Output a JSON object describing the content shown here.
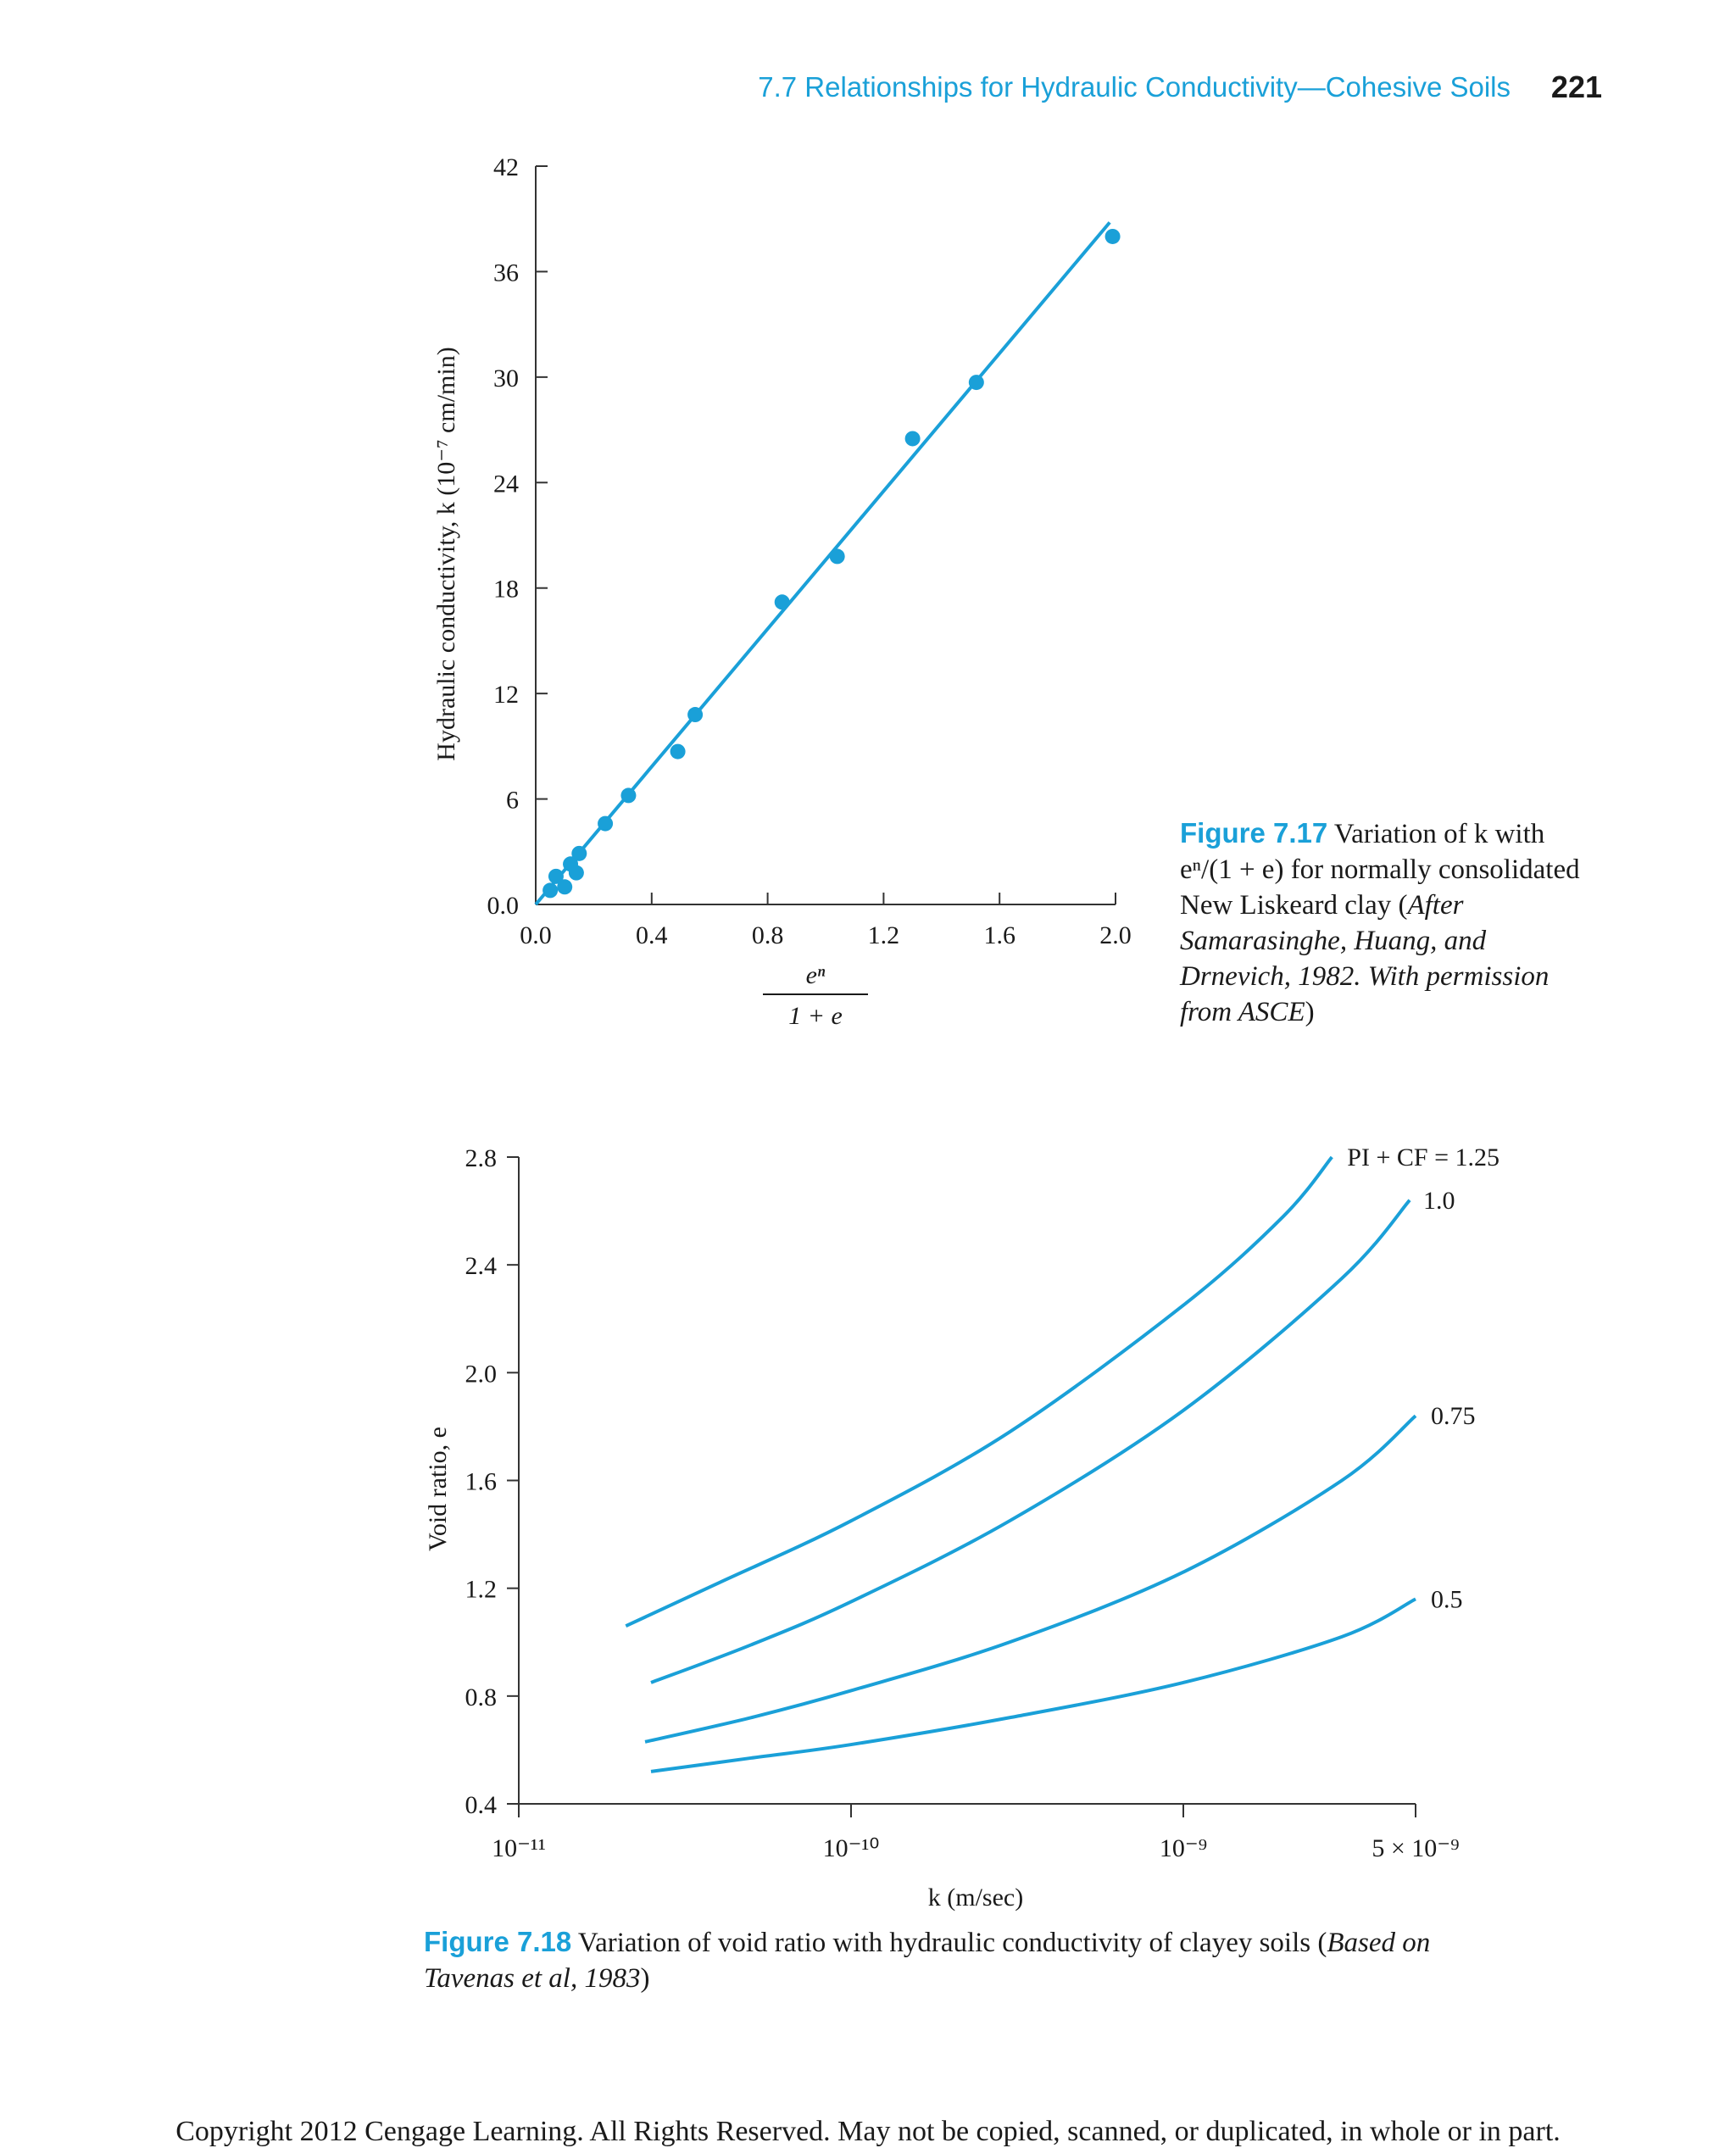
{
  "header": {
    "running_head": "7.7 Relationships for Hydraulic Conductivity—Cohesive Soils",
    "page_number": "221"
  },
  "colors": {
    "accent": "#1aa0d8",
    "axis": "#333333",
    "text": "#1a1a1a"
  },
  "chart_data": [
    {
      "type": "scatter",
      "ylabel": "Hydraulic conductivity, k (10⁻⁷ cm/min)",
      "xlabel_numerator": "eⁿ",
      "xlabel_denominator": "1 + e",
      "xlim": [
        0.0,
        2.0
      ],
      "ylim": [
        0.0,
        42
      ],
      "x_ticks": [
        0.0,
        0.4,
        0.8,
        1.2,
        1.6,
        2.0
      ],
      "x_tick_labels": [
        "0.0",
        "0.4",
        "0.8",
        "1.2",
        "1.6",
        "2.0"
      ],
      "y_ticks": [
        0,
        6,
        12,
        18,
        24,
        30,
        36,
        42
      ],
      "y_tick_labels": [
        "0.0",
        "6",
        "12",
        "18",
        "24",
        "30",
        "36",
        "42"
      ],
      "points": {
        "x": [
          0.05,
          0.07,
          0.1,
          0.12,
          0.14,
          0.15,
          0.24,
          0.32,
          0.49,
          0.55,
          0.85,
          1.04,
          1.3,
          1.52,
          1.99
        ],
        "y": [
          0.8,
          1.6,
          1.0,
          2.3,
          1.8,
          2.9,
          4.6,
          6.2,
          8.7,
          10.8,
          17.2,
          19.8,
          26.5,
          29.7,
          38.0
        ]
      },
      "fit_line": {
        "x": [
          0.0,
          1.98
        ],
        "y": [
          0.0,
          38.8
        ]
      },
      "caption": {
        "label": "Figure 7.17",
        "line1": "Variation of k with",
        "line2": "eⁿ/(1 + e) for normally consolidated",
        "line3": "New Liskeard clay (",
        "line3_italic": "After",
        "line4_italic": "Samarasinghe, Huang, and",
        "line5_italic": "Drnevich, 1982. With permission",
        "line6_italic": "from ASCE",
        "line6_end": ")"
      }
    },
    {
      "type": "line",
      "xscale": "log",
      "xlabel": "k (m/sec)",
      "ylabel": "Void ratio, e",
      "xlim": [
        1e-11,
        5e-09
      ],
      "ylim": [
        0.4,
        2.8
      ],
      "x_ticks": [
        1e-11,
        1e-10,
        1e-09,
        5e-09
      ],
      "x_tick_labels": [
        "10⁻¹¹",
        "10⁻¹⁰",
        "10⁻⁹",
        "5 × 10⁻⁹"
      ],
      "y_ticks": [
        0.4,
        0.8,
        1.2,
        1.6,
        2.0,
        2.4,
        2.8
      ],
      "y_tick_labels": [
        "0.4",
        "0.8",
        "1.2",
        "1.6",
        "2.0",
        "2.4",
        "2.8"
      ],
      "series": [
        {
          "name": "PI + CF = 1.25",
          "x": [
            2.1e-11,
            4e-11,
            1e-10,
            3e-10,
            1e-09,
            2e-09,
            2.8e-09
          ],
          "y": [
            1.06,
            1.22,
            1.45,
            1.78,
            2.25,
            2.58,
            2.8
          ]
        },
        {
          "name": "1.0",
          "x": [
            2.5e-11,
            5e-11,
            1e-10,
            3e-10,
            1e-09,
            3e-09,
            4.8e-09
          ],
          "y": [
            0.85,
            0.99,
            1.15,
            1.45,
            1.86,
            2.35,
            2.64
          ]
        },
        {
          "name": "0.75",
          "x": [
            2.4e-11,
            5e-11,
            1e-10,
            3e-10,
            1e-09,
            3e-09,
            5e-09
          ],
          "y": [
            0.63,
            0.72,
            0.82,
            1.0,
            1.26,
            1.6,
            1.84
          ]
        },
        {
          "name": "0.5",
          "x": [
            2.5e-11,
            5e-11,
            1e-10,
            3e-10,
            1e-09,
            3e-09,
            5e-09
          ],
          "y": [
            0.52,
            0.57,
            0.62,
            0.72,
            0.85,
            1.02,
            1.16
          ]
        }
      ],
      "caption": {
        "label": "Figure 7.18",
        "text": "Variation of void ratio with hydraulic conductivity of clayey soils (",
        "italic": "Based on Tavenas et al, 1983",
        "end": ")"
      }
    }
  ],
  "footer": {
    "copyright": "Copyright 2012 Cengage Learning. All Rights Reserved. May not be copied, scanned, or duplicated, in whole or in part."
  }
}
